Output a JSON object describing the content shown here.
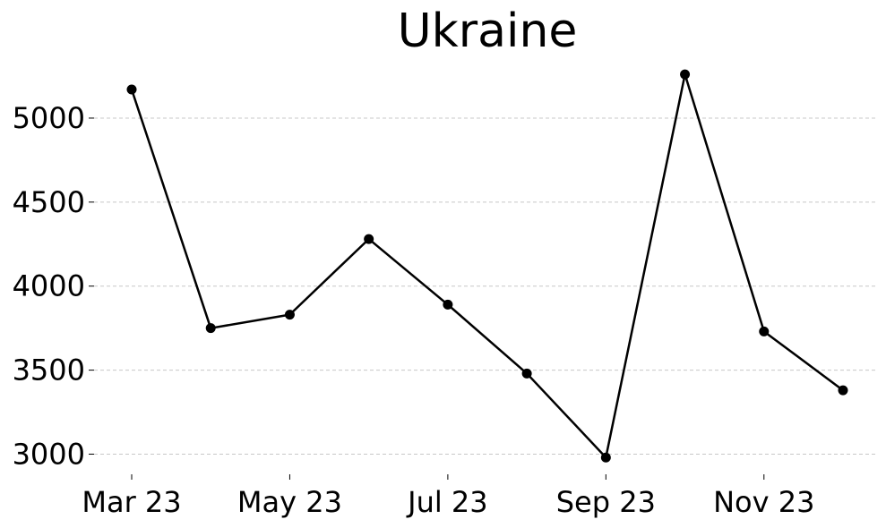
{
  "chart_data": {
    "type": "line",
    "title": "Ukraine",
    "xlabel": "",
    "ylabel": "",
    "x": [
      "Mar 23",
      "Apr 23",
      "May 23",
      "Jun 23",
      "Jul 23",
      "Aug 23",
      "Sep 23",
      "Oct 23",
      "Nov 23",
      "Dec 23"
    ],
    "x_tick_labels": [
      "Mar 23",
      "May 23",
      "Jul 23",
      "Sep 23",
      "Nov 23"
    ],
    "y_ticks": [
      3000,
      3500,
      4000,
      4500,
      5000
    ],
    "ylim": [
      2880,
      5330
    ],
    "grid": "horizontal",
    "series": [
      {
        "values": [
          5170,
          3750,
          3830,
          4280,
          3890,
          3480,
          2980,
          5260,
          3730,
          3380
        ]
      }
    ],
    "colors": {
      "line": "#000000",
      "grid": "#c8c8c8"
    }
  }
}
